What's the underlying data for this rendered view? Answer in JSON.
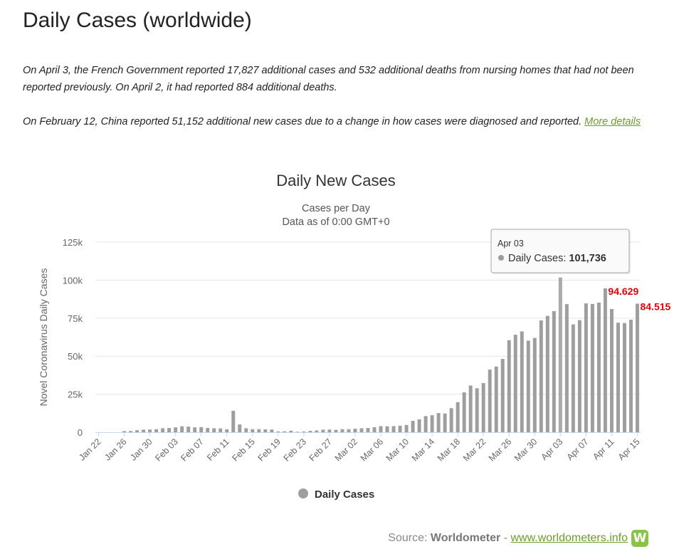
{
  "page": {
    "title": "Daily Cases (worldwide)",
    "note1": "On April 3, the French Government reported 17,827 additional cases and 532 additional deaths from nursing homes that had not been reported previously. On April 2, it had reported 884 additional deaths.",
    "note2": "On February 12, China reported 51,152 additional new cases due to a change in how cases were diagnosed and reported.",
    "note2_link": "More details"
  },
  "source": {
    "prefix": "Source:",
    "name": "Worldometer",
    "separator": "-",
    "link": "www.worldometers.info",
    "logo": "W"
  },
  "colors": {
    "bar": "#9e9e9e",
    "bar_highlight": "#a9a9a9",
    "annotation": "#e0000b",
    "link": "#6e9a2c",
    "grid": "#e6e6e6"
  },
  "chart_data": {
    "type": "bar",
    "title": "Daily New Cases",
    "subtitle": "Cases per Day",
    "subtitle2": "Data as of 0:00 GMT+0",
    "ylabel": "Novel Coronavirus Daily Cases",
    "xlabel": "",
    "ylim": [
      0,
      125000
    ],
    "yticks": [
      0,
      25000,
      50000,
      75000,
      100000,
      125000
    ],
    "ytick_labels": [
      "0",
      "25k",
      "50k",
      "75k",
      "100k",
      "125k"
    ],
    "grid": true,
    "legend": {
      "position": "bottom-center",
      "label": "Daily Cases"
    },
    "categories": [
      "Jan 22",
      "Jan 23",
      "Jan 24",
      "Jan 25",
      "Jan 26",
      "Jan 27",
      "Jan 28",
      "Jan 29",
      "Jan 30",
      "Jan 31",
      "Feb 01",
      "Feb 02",
      "Feb 03",
      "Feb 04",
      "Feb 05",
      "Feb 06",
      "Feb 07",
      "Feb 08",
      "Feb 09",
      "Feb 10",
      "Feb 11",
      "Feb 12",
      "Feb 13",
      "Feb 14",
      "Feb 15",
      "Feb 16",
      "Feb 17",
      "Feb 18",
      "Feb 19",
      "Feb 20",
      "Feb 21",
      "Feb 22",
      "Feb 23",
      "Feb 24",
      "Feb 25",
      "Feb 26",
      "Feb 27",
      "Feb 28",
      "Feb 29",
      "Mar 01",
      "Mar 02",
      "Mar 03",
      "Mar 04",
      "Mar 05",
      "Mar 06",
      "Mar 07",
      "Mar 08",
      "Mar 09",
      "Mar 10",
      "Mar 11",
      "Mar 12",
      "Mar 13",
      "Mar 14",
      "Mar 15",
      "Mar 16",
      "Mar 17",
      "Mar 18",
      "Mar 19",
      "Mar 20",
      "Mar 21",
      "Mar 22",
      "Mar 23",
      "Mar 24",
      "Mar 25",
      "Mar 26",
      "Mar 27",
      "Mar 28",
      "Mar 29",
      "Mar 30",
      "Mar 31",
      "Apr 01",
      "Apr 02",
      "Apr 03",
      "Apr 04",
      "Apr 05",
      "Apr 06",
      "Apr 07",
      "Apr 08",
      "Apr 09",
      "Apr 10",
      "Apr 11",
      "Apr 12",
      "Apr 13",
      "Apr 14",
      "Apr 15"
    ],
    "xtick_labels": [
      "Jan 22",
      "Jan 26",
      "Jan 30",
      "Feb 03",
      "Feb 07",
      "Feb 11",
      "Feb 15",
      "Feb 19",
      "Feb 23",
      "Feb 27",
      "Mar 02",
      "Mar 06",
      "Mar 10",
      "Mar 14",
      "Mar 18",
      "Mar 22",
      "Mar 26",
      "Mar 30",
      "Apr 03",
      "Apr 07",
      "Apr 11",
      "Apr 15"
    ],
    "series": [
      {
        "name": "Daily Cases",
        "values": [
          0,
          0,
          0,
          0,
          700,
          800,
          1300,
          1700,
          1800,
          2000,
          2600,
          2800,
          3200,
          3900,
          3700,
          3200,
          3400,
          2800,
          2600,
          2500,
          1900,
          14100,
          5100,
          2600,
          2000,
          2000,
          1900,
          1800,
          500,
          600,
          1000,
          300,
          500,
          900,
          1200,
          1700,
          1800,
          1600,
          2000,
          2000,
          2300,
          2600,
          2800,
          3300,
          4000,
          3900,
          4000,
          4300,
          4800,
          7500,
          8500,
          10600,
          11200,
          12600,
          12300,
          15800,
          19800,
          26200,
          30700,
          28900,
          32300,
          41200,
          43200,
          48200,
          60500,
          64100,
          66300,
          60200,
          62000,
          73500,
          76500,
          79600,
          101736,
          84200,
          70900,
          73700,
          84700,
          84300,
          85200,
          94629,
          81000,
          72000,
          71800,
          74000,
          84515
        ]
      }
    ],
    "tooltip": {
      "category": "Apr 03",
      "label": "Daily Cases:",
      "value": "101,736"
    },
    "annotations": [
      {
        "category": "Apr 10",
        "text": "94.629"
      },
      {
        "category": "Apr 15",
        "text": "84.515"
      }
    ]
  }
}
